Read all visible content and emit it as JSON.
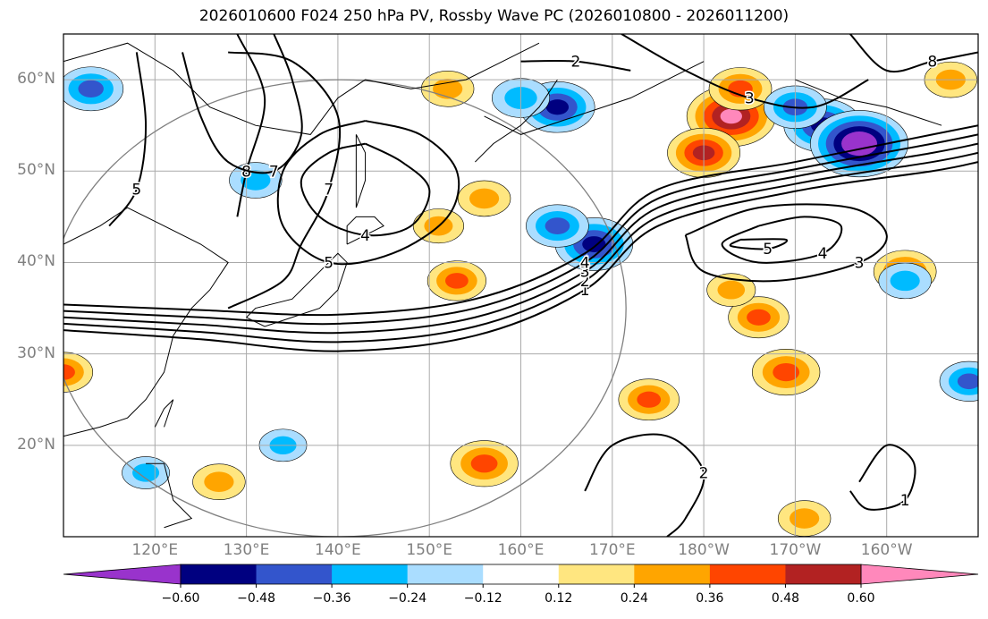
{
  "title": "2026010600 F024 250 hPa PV, Rossby Wave PC (2026010800 - 2026011200)",
  "chart_data": {
    "type": "contour-map",
    "title": "2026010600 F024 250 hPa PV, Rossby Wave PC (2026010800 - 2026011200)",
    "lon_range": [
      110,
      210
    ],
    "lat_range": [
      10,
      65
    ],
    "lat_ticks": [
      {
        "value": 60,
        "label": "60°N"
      },
      {
        "value": 50,
        "label": "50°N"
      },
      {
        "value": 40,
        "label": "40°N"
      },
      {
        "value": 30,
        "label": "30°N"
      },
      {
        "value": 20,
        "label": "20°N"
      }
    ],
    "lon_ticks": [
      {
        "value": 120,
        "label": "120°E"
      },
      {
        "value": 130,
        "label": "130°E"
      },
      {
        "value": 140,
        "label": "140°E"
      },
      {
        "value": 150,
        "label": "150°E"
      },
      {
        "value": 160,
        "label": "160°E"
      },
      {
        "value": 170,
        "label": "170°E"
      },
      {
        "value": 180,
        "label": "180°W"
      },
      {
        "value": 190,
        "label": "170°W"
      },
      {
        "value": 200,
        "label": "160°W"
      }
    ],
    "colorbar": {
      "levels": [
        -0.72,
        -0.6,
        -0.48,
        -0.36,
        -0.24,
        -0.12,
        0.12,
        0.24,
        0.36,
        0.48,
        0.6,
        0.72
      ],
      "tick_labels": [
        "−0.60",
        "−0.48",
        "−0.36",
        "−0.24",
        "−0.12",
        "0.12",
        "0.24",
        "0.36",
        "0.48",
        "0.60"
      ],
      "colors": [
        "#9933cc",
        "#000080",
        "#3355cc",
        "#00bbff",
        "#aaddff",
        "#ffffff",
        "#ffe680",
        "#ffa500",
        "#ff4500",
        "#b22222",
        "#ff88bb"
      ],
      "extend": "both"
    },
    "pc_blobs": [
      {
        "lon": 183,
        "lat": 56,
        "value": 0.66
      },
      {
        "lon": 180,
        "lat": 52,
        "value": 0.5
      },
      {
        "lon": 184,
        "lat": 59,
        "value": 0.4
      },
      {
        "lon": 189,
        "lat": 28,
        "value": 0.45
      },
      {
        "lon": 186,
        "lat": 34,
        "value": 0.38
      },
      {
        "lon": 183,
        "lat": 37,
        "value": 0.26
      },
      {
        "lon": 151,
        "lat": 44,
        "value": 0.28
      },
      {
        "lon": 153,
        "lat": 38,
        "value": 0.36
      },
      {
        "lon": 156,
        "lat": 47,
        "value": 0.3
      },
      {
        "lon": 202,
        "lat": 39,
        "value": 0.4
      },
      {
        "lon": 207,
        "lat": 60,
        "value": 0.3
      },
      {
        "lon": 152,
        "lat": 59,
        "value": 0.3
      },
      {
        "lon": 156,
        "lat": 18,
        "value": 0.45
      },
      {
        "lon": 174,
        "lat": 25,
        "value": 0.38
      },
      {
        "lon": 127,
        "lat": 16,
        "value": 0.3
      },
      {
        "lon": 191,
        "lat": 12,
        "value": 0.3
      },
      {
        "lon": 110,
        "lat": 28,
        "value": 0.36
      },
      {
        "lon": 193,
        "lat": 55,
        "value": -0.55
      },
      {
        "lon": 197,
        "lat": 53,
        "value": -0.75
      },
      {
        "lon": 190,
        "lat": 57,
        "value": -0.4
      },
      {
        "lon": 164,
        "lat": 57,
        "value": -0.52
      },
      {
        "lon": 160,
        "lat": 58,
        "value": -0.35
      },
      {
        "lon": 168,
        "lat": 42,
        "value": -0.55
      },
      {
        "lon": 164,
        "lat": 44,
        "value": -0.4
      },
      {
        "lon": 113,
        "lat": 59,
        "value": -0.42
      },
      {
        "lon": 131,
        "lat": 49,
        "value": -0.3
      },
      {
        "lon": 202,
        "lat": 38,
        "value": -0.3
      },
      {
        "lon": 209,
        "lat": 27,
        "value": -0.36
      },
      {
        "lon": 134,
        "lat": 20,
        "value": -0.25
      },
      {
        "lon": 119,
        "lat": 17,
        "value": -0.25
      }
    ],
    "contours": [
      {
        "label": "1",
        "points": [
          [
            110,
            32.6
          ],
          [
            125,
            31.6
          ],
          [
            140,
            30.3
          ],
          [
            155,
            32
          ],
          [
            167,
            37
          ],
          [
            175,
            44
          ],
          [
            190,
            47.8
          ],
          [
            205,
            50
          ],
          [
            210,
            51
          ]
        ]
      },
      {
        "label": "2",
        "points": [
          [
            110,
            33.3
          ],
          [
            125,
            32.4
          ],
          [
            140,
            31.3
          ],
          [
            155,
            33
          ],
          [
            167,
            38
          ],
          [
            175,
            45
          ],
          [
            190,
            48.6
          ],
          [
            205,
            51
          ],
          [
            210,
            52
          ]
        ]
      },
      {
        "label": "3",
        "points": [
          [
            110,
            34
          ],
          [
            125,
            33.2
          ],
          [
            140,
            32.3
          ],
          [
            155,
            34
          ],
          [
            167,
            39
          ],
          [
            175,
            46
          ],
          [
            190,
            49.4
          ],
          [
            205,
            52
          ],
          [
            210,
            53
          ]
        ]
      },
      {
        "label": "4",
        "points": [
          [
            110,
            34.7
          ],
          [
            125,
            34
          ],
          [
            140,
            33.3
          ],
          [
            155,
            35
          ],
          [
            167,
            40
          ],
          [
            175,
            47
          ],
          [
            190,
            50.2
          ],
          [
            205,
            53
          ],
          [
            210,
            54
          ]
        ]
      },
      {
        "label": "",
        "points": [
          [
            110,
            35.4
          ],
          [
            125,
            34.8
          ],
          [
            140,
            34.3
          ],
          [
            155,
            36
          ],
          [
            167,
            41
          ],
          [
            175,
            48
          ],
          [
            190,
            51
          ],
          [
            205,
            54
          ],
          [
            210,
            55
          ]
        ]
      },
      {
        "label": "4",
        "points": [
          [
            143,
            53
          ],
          [
            147,
            51
          ],
          [
            150,
            48
          ],
          [
            148,
            44
          ],
          [
            143,
            43
          ],
          [
            138,
            45
          ],
          [
            136,
            49
          ],
          [
            139,
            52
          ],
          [
            143,
            53
          ]
        ]
      },
      {
        "label": "5",
        "points": [
          [
            143,
            55.5
          ],
          [
            149,
            54
          ],
          [
            153,
            50
          ],
          [
            152,
            45
          ],
          [
            146,
            41
          ],
          [
            139,
            40
          ],
          [
            134,
            44
          ],
          [
            134,
            50
          ],
          [
            138,
            54
          ],
          [
            143,
            55.5
          ]
        ]
      },
      {
        "label": "7",
        "points": [
          [
            128,
            63
          ],
          [
            135,
            62
          ],
          [
            140,
            56
          ],
          [
            139,
            48
          ],
          [
            136,
            42
          ],
          [
            134,
            38
          ],
          [
            128,
            35
          ]
        ]
      },
      {
        "label": "8",
        "points": [
          [
            129,
            65
          ],
          [
            132,
            58
          ],
          [
            130,
            50
          ],
          [
            129,
            45
          ]
        ]
      },
      {
        "label": "7",
        "points": [
          [
            123,
            63
          ],
          [
            125,
            56
          ],
          [
            128,
            51
          ],
          [
            133,
            50
          ],
          [
            136,
            54
          ],
          [
            135,
            60
          ],
          [
            133,
            65
          ]
        ]
      },
      {
        "label": "5",
        "points": [
          [
            118,
            63
          ],
          [
            119,
            55
          ],
          [
            118,
            48
          ],
          [
            115,
            44
          ]
        ]
      },
      {
        "label": "4",
        "points": [
          [
            186,
            44
          ],
          [
            191,
            45
          ],
          [
            195,
            44
          ],
          [
            193,
            41
          ],
          [
            186,
            40
          ],
          [
            182,
            42
          ],
          [
            186,
            44
          ]
        ]
      },
      {
        "label": "5",
        "points": [
          [
            184,
            42.5
          ],
          [
            189,
            42.5
          ],
          [
            187,
            41.5
          ],
          [
            183,
            41.8
          ],
          [
            184,
            42.5
          ]
        ]
      },
      {
        "label": "3",
        "points": [
          [
            178,
            43
          ],
          [
            186,
            46
          ],
          [
            196,
            46
          ],
          [
            200,
            43
          ],
          [
            197,
            40
          ],
          [
            188,
            38
          ],
          [
            180,
            39
          ],
          [
            178,
            43
          ]
        ]
      },
      {
        "label": "2",
        "points": [
          [
            167,
            15
          ],
          [
            170,
            20
          ],
          [
            176,
            21
          ],
          [
            180,
            17
          ],
          [
            178,
            12
          ],
          [
            176,
            10
          ]
        ]
      },
      {
        "label": "1",
        "points": [
          [
            197,
            16
          ],
          [
            200,
            20
          ],
          [
            203,
            18
          ],
          [
            202,
            14
          ],
          [
            198,
            13
          ],
          [
            196,
            15
          ]
        ]
      },
      {
        "label": "3",
        "points": [
          [
            171,
            65
          ],
          [
            178,
            61
          ],
          [
            185,
            58
          ],
          [
            192,
            57
          ],
          [
            198,
            60
          ]
        ]
      },
      {
        "label": "2",
        "points": [
          [
            160,
            62
          ],
          [
            166,
            62
          ],
          [
            172,
            61
          ]
        ]
      },
      {
        "label": "8",
        "points": [
          [
            196,
            65
          ],
          [
            200,
            61
          ],
          [
            205,
            62
          ],
          [
            210,
            63
          ]
        ]
      }
    ],
    "radius_circle": {
      "center_lon": 140,
      "center_lat": 35,
      "radius_deg": 25
    }
  }
}
